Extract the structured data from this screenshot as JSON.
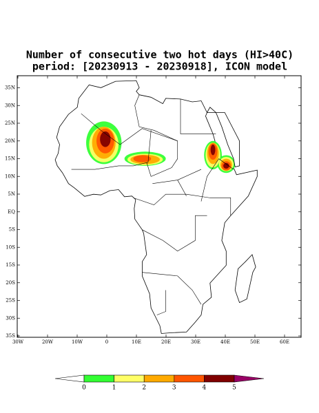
{
  "title": [
    "Number of consecutive two hot days (HI>40C)",
    "period: [20230913 - 20230918], ICON model"
  ],
  "map": {
    "lat_labels": [
      "35N",
      "30N",
      "25N",
      "20N",
      "15N",
      "10N",
      "5N",
      "EQ",
      "5S",
      "10S",
      "15S",
      "20S",
      "25S",
      "30S",
      "35S"
    ],
    "lon_labels": [
      "30W",
      "20W",
      "10W",
      "0",
      "10E",
      "20E",
      "30E",
      "40E",
      "50E",
      "60E"
    ]
  },
  "colorbar": {
    "ticks": [
      0,
      1,
      2,
      3,
      4,
      5
    ],
    "colors": [
      "#ffffff",
      "#33ff33",
      "#ffff66",
      "#ffaa00",
      "#ff5500",
      "#800000",
      "#990066"
    ]
  }
}
